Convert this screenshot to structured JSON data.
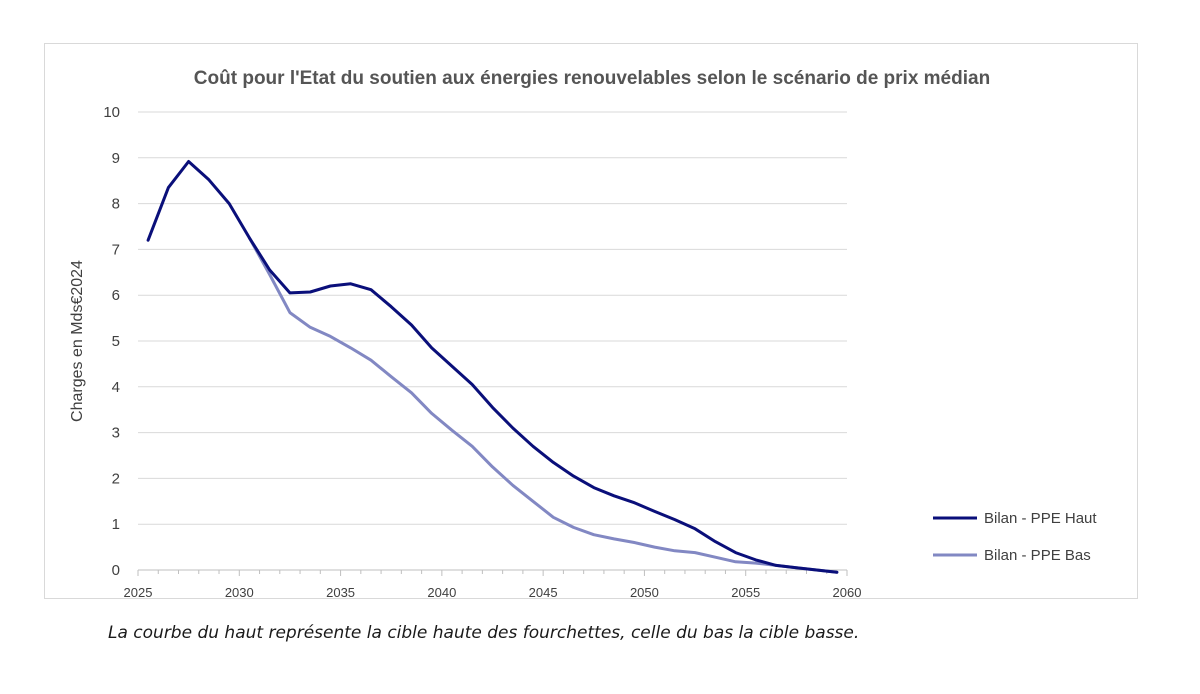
{
  "caption": "La courbe du haut représente la cible haute des fourchettes, celle du bas la cible basse.",
  "colors": {
    "haut": "#0a0f7a",
    "bas": "#8288c3",
    "grid": "#d9d9d9",
    "axis": "#bfbfbf"
  },
  "chart_data": {
    "type": "line",
    "title": "Coût pour l'Etat du soutien aux énergies renouvelables selon le scénario de prix médian",
    "xlabel": "",
    "ylabel": "Charges en Mds€2024",
    "xlim": [
      2025,
      2060
    ],
    "ylim": [
      0,
      10
    ],
    "xticks": [
      2025,
      2030,
      2035,
      2040,
      2045,
      2050,
      2055,
      2060
    ],
    "yticks": [
      0,
      1,
      2,
      3,
      4,
      5,
      6,
      7,
      8,
      9,
      10
    ],
    "grid": true,
    "legend_position": "right",
    "series": [
      {
        "name": "Bilan - PPE Haut",
        "color": "#0a0f7a",
        "x": [
          2025,
          2026,
          2027,
          2028,
          2029,
          2030,
          2031,
          2032,
          2033,
          2034,
          2035,
          2036,
          2037,
          2038,
          2039,
          2040,
          2041,
          2042,
          2043,
          2044,
          2045,
          2046,
          2047,
          2048,
          2049,
          2050,
          2051,
          2052,
          2053,
          2054,
          2055,
          2056,
          2057,
          2058,
          2059
        ],
        "y": [
          7.2,
          8.35,
          8.92,
          8.52,
          8.0,
          7.25,
          6.55,
          6.05,
          6.07,
          6.2,
          6.25,
          6.12,
          5.75,
          5.35,
          4.85,
          4.45,
          4.05,
          3.55,
          3.1,
          2.7,
          2.35,
          2.05,
          1.8,
          1.62,
          1.47,
          1.28,
          1.1,
          0.9,
          0.62,
          0.38,
          0.22,
          0.1,
          0.05,
          0.0,
          -0.05
        ]
      },
      {
        "name": "Bilan - PPE Bas",
        "color": "#8288c3",
        "x": [
          2030,
          2031,
          2032,
          2033,
          2034,
          2035,
          2036,
          2037,
          2038,
          2039,
          2040,
          2041,
          2042,
          2043,
          2044,
          2045,
          2046,
          2047,
          2048,
          2049,
          2050,
          2051,
          2052,
          2053,
          2054,
          2055,
          2056,
          2057,
          2058,
          2059
        ],
        "y": [
          7.25,
          6.45,
          5.62,
          5.3,
          5.1,
          4.85,
          4.58,
          4.22,
          3.87,
          3.42,
          3.05,
          2.7,
          2.25,
          1.85,
          1.5,
          1.15,
          0.93,
          0.77,
          0.68,
          0.6,
          0.5,
          0.42,
          0.38,
          0.28,
          0.18,
          0.15,
          0.1,
          0.05,
          0.0,
          -0.05
        ]
      }
    ]
  }
}
